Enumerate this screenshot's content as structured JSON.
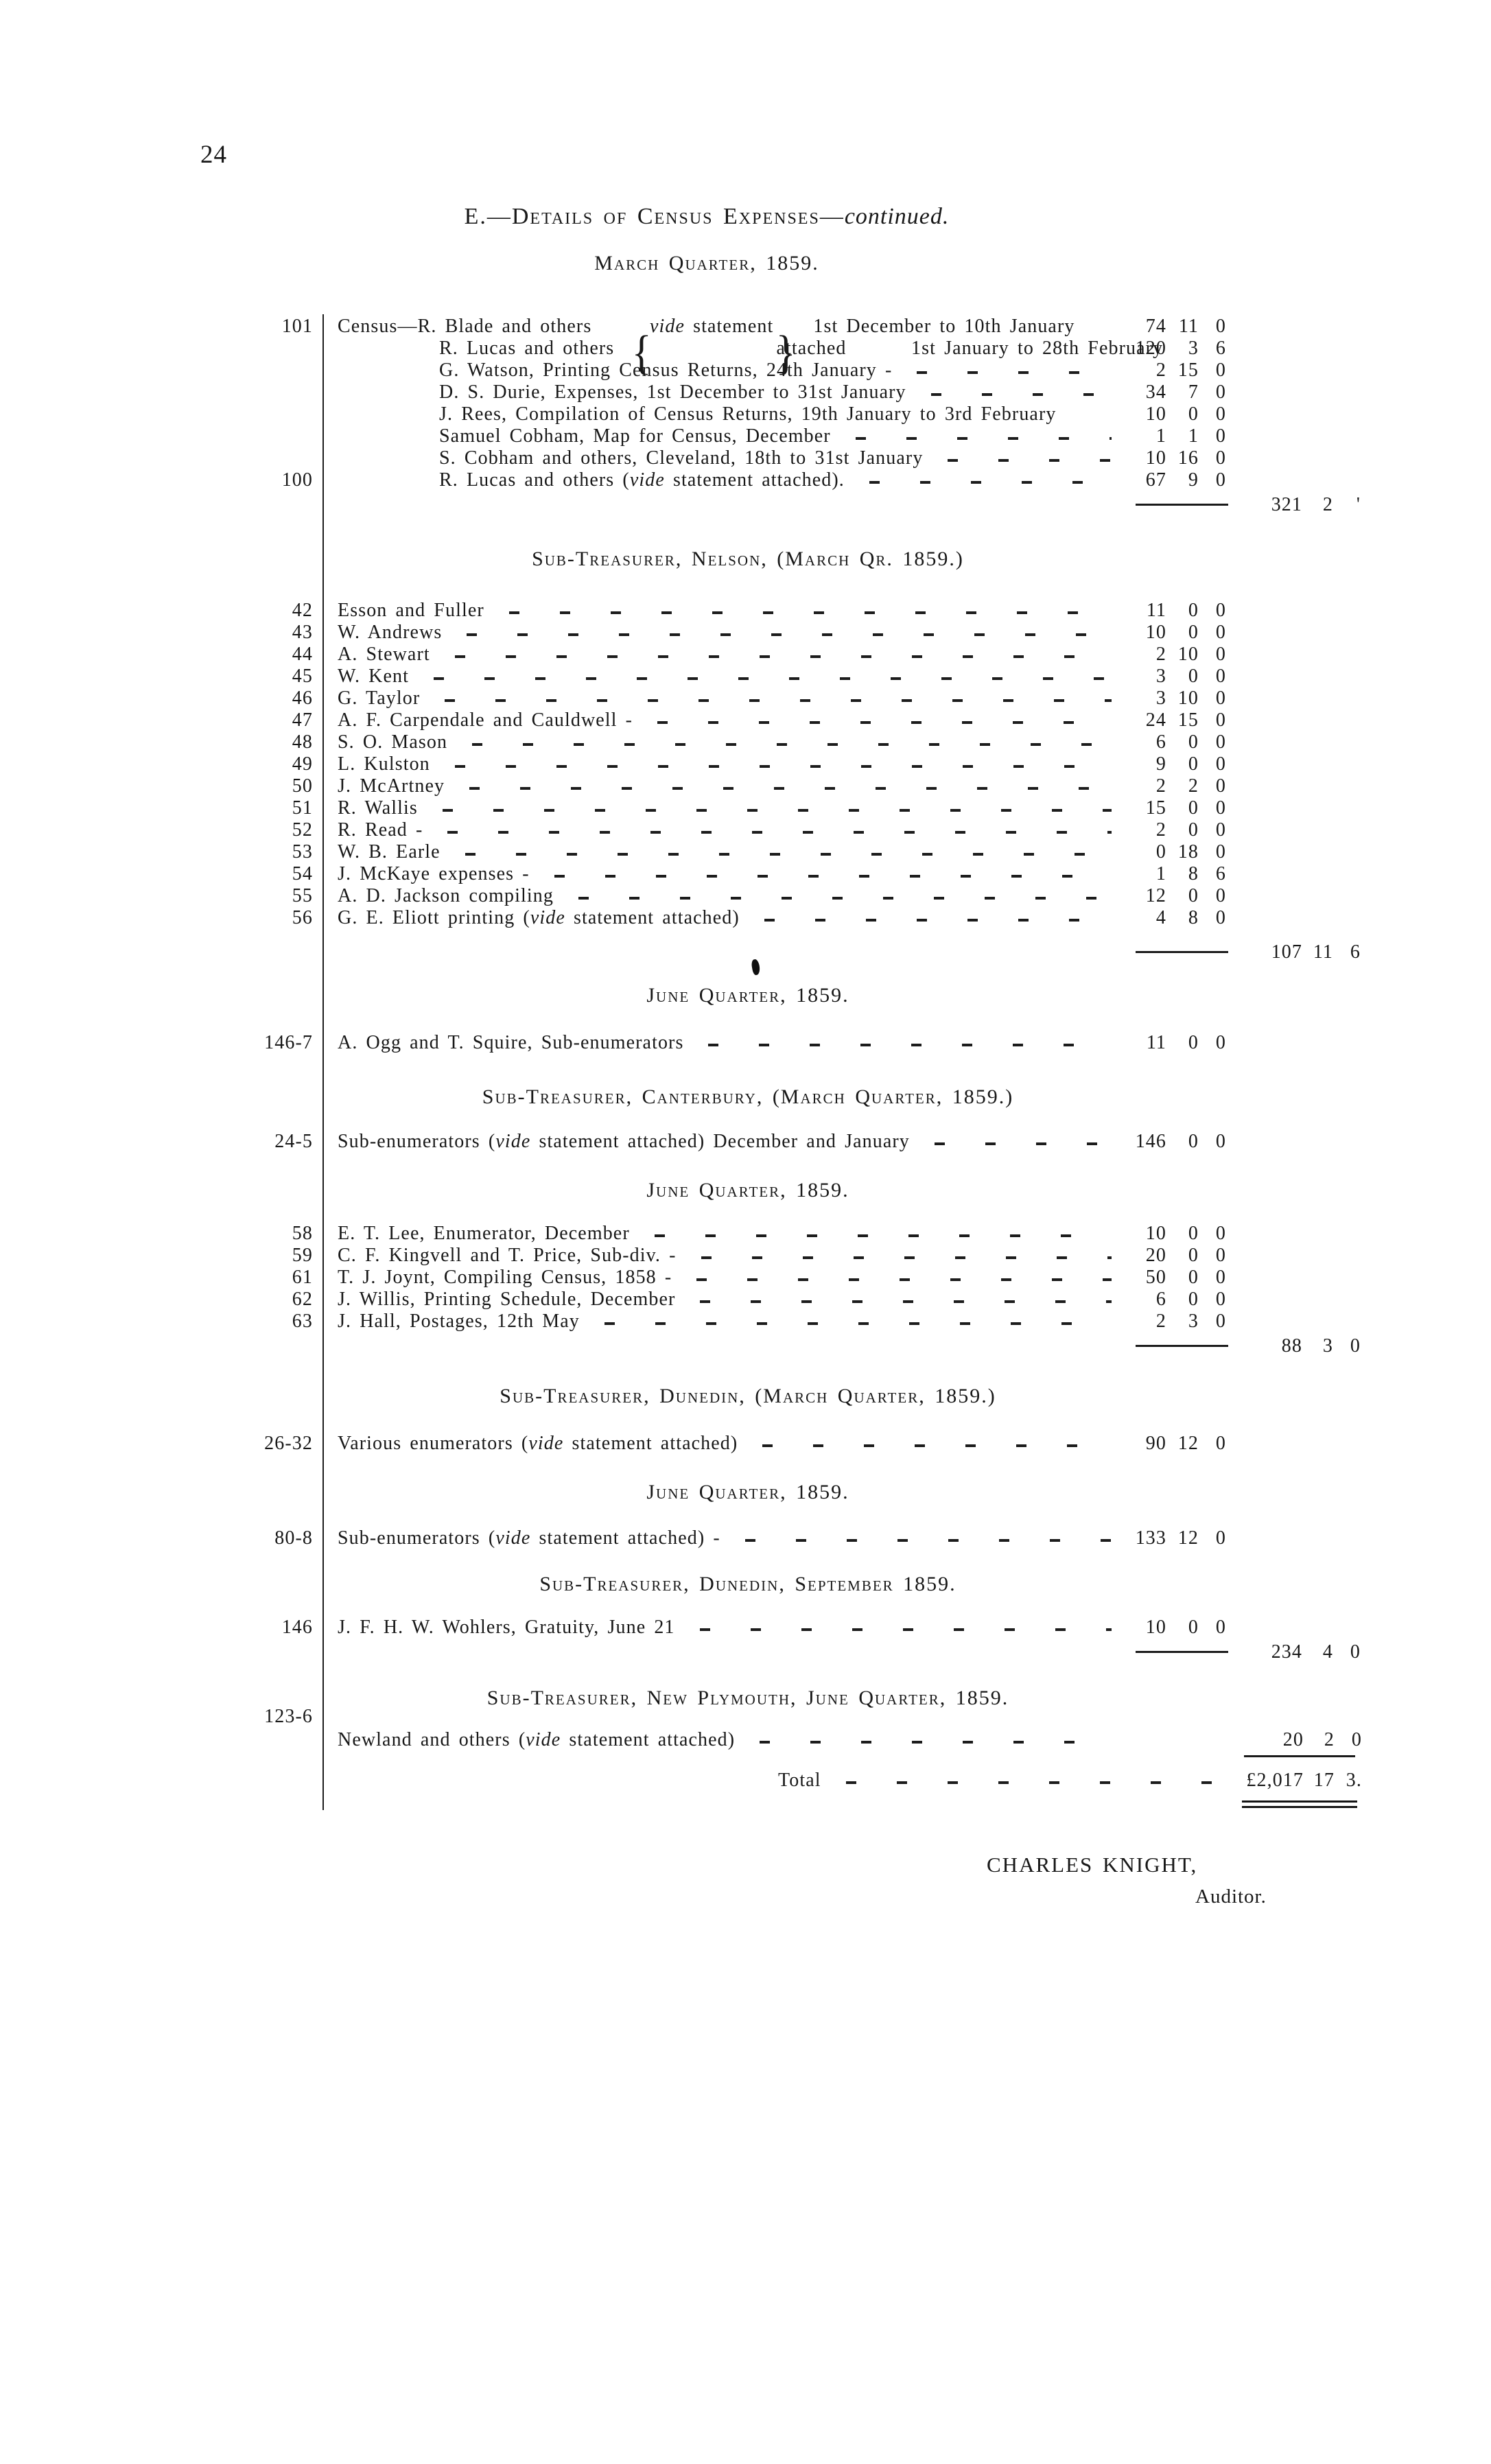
{
  "page": {
    "number": "24",
    "title_caps": "E.—Details of Census Expenses—",
    "title_continued": "continued.",
    "subtitle": "March Quarter, 1859."
  },
  "signature": {
    "name": "CHARLES KNIGHT,",
    "role": "Auditor."
  },
  "table": {
    "currency_columns": [
      "pounds",
      "shillings",
      "pence"
    ],
    "blocks": [
      {
        "cls": "blk-census",
        "rows": [
          {
            "ref": "101",
            "desc": "Census—R. Blade and others",
            "mid": "vide statement",
            "tail": "1st December to 10th January",
            "l": "74",
            "s": "11",
            "d": "0",
            "brace": true
          },
          {
            "desc": "R. Lucas and others",
            "mid": "attached",
            "tail": "1st January to 28th February",
            "l": "120",
            "s": "3",
            "d": "6",
            "brace": true,
            "ind2": true
          },
          {
            "desc": "G. Watson, Printing Census Returns, 24th January -",
            "l": "2",
            "s": "15",
            "d": "0",
            "leader": true,
            "ind": true
          },
          {
            "desc": "D. S. Durie, Expenses, 1st December to 31st January",
            "l": "34",
            "s": "7",
            "d": "0",
            "leader": true,
            "ind": true
          },
          {
            "desc": "J. Rees, Compilation of Census Returns, 19th January to 3rd February",
            "l": "10",
            "s": "0",
            "d": "0",
            "ind": true
          },
          {
            "desc": "Samuel Cobham, Map for Census, December",
            "l": "1",
            "s": "1",
            "d": "0",
            "leader": true,
            "ind": true
          },
          {
            "desc": "S. Cobham and others, Cleveland, 18th to 31st January",
            "l": "10",
            "s": "16",
            "d": "0",
            "leader": true,
            "ind": true
          },
          {
            "ref": "100",
            "desc": "R. Lucas and others (vide statement attached).",
            "l": "67",
            "s": "9",
            "d": "0",
            "leader": true,
            "ind": true
          }
        ],
        "subtotal": {
          "l": "321",
          "s": "2",
          "d": "'"
        }
      },
      {
        "cls": "blk-nelson",
        "heading": "Sub-Treasurer, Nelson, (March Qr. 1859.)",
        "rows": [
          {
            "ref": "42",
            "desc": "Esson and Fuller",
            "l": "11",
            "s": "0",
            "d": "0",
            "leader": true
          },
          {
            "ref": "43",
            "desc": "W. Andrews",
            "l": "10",
            "s": "0",
            "d": "0",
            "leader": true
          },
          {
            "ref": "44",
            "desc": "A. Stewart",
            "l": "2",
            "s": "10",
            "d": "0",
            "leader": true
          },
          {
            "ref": "45",
            "desc": "W. Kent",
            "l": "3",
            "s": "0",
            "d": "0",
            "leader": true
          },
          {
            "ref": "46",
            "desc": "G. Taylor",
            "l": "3",
            "s": "10",
            "d": "0",
            "leader": true
          },
          {
            "ref": "47",
            "desc": "A. F. Carpendale and Cauldwell -",
            "l": "24",
            "s": "15",
            "d": "0",
            "leader": true
          },
          {
            "ref": "48",
            "desc": "S. O. Mason",
            "l": "6",
            "s": "0",
            "d": "0",
            "leader": true
          },
          {
            "ref": "49",
            "desc": "L. Kulston",
            "l": "9",
            "s": "0",
            "d": "0",
            "leader": true
          },
          {
            "ref": "50",
            "desc": "J. McArtney",
            "l": "2",
            "s": "2",
            "d": "0",
            "leader": true
          },
          {
            "ref": "51",
            "desc": "R. Wallis",
            "l": "15",
            "s": "0",
            "d": "0",
            "leader": true
          },
          {
            "ref": "52",
            "desc": "R. Read -",
            "l": "2",
            "s": "0",
            "d": "0",
            "leader": true
          },
          {
            "ref": "53",
            "desc": "W. B. Earle",
            "l": "0",
            "s": "18",
            "d": "0",
            "leader": true
          },
          {
            "ref": "54",
            "desc": "J. McKaye expenses -",
            "l": "1",
            "s": "8",
            "d": "6",
            "leader": true
          },
          {
            "ref": "55",
            "desc": "A. D. Jackson compiling",
            "l": "12",
            "s": "0",
            "d": "0",
            "leader": true
          },
          {
            "ref": "56",
            "desc": "G. E. Eliott printing (vide statement attached)",
            "l": "4",
            "s": "8",
            "d": "0",
            "leader": true
          }
        ],
        "subtotal": {
          "l": "107",
          "s": "11",
          "d": "6"
        }
      },
      {
        "cls": "blk-june1",
        "heading": "June Quarter, 1859.",
        "rows": [
          {
            "ref": "146-7",
            "desc": "A. Ogg and T. Squire, Sub-enumerators",
            "l": "11",
            "s": "0",
            "d": "0",
            "leader": true
          }
        ]
      },
      {
        "cls": "blk-canterbury",
        "heading": "Sub-Treasurer, Canterbury, (March Quarter, 1859.)",
        "rows": [
          {
            "ref": "24-5",
            "desc": "Sub-enumerators (vide statement attached) December and January",
            "l": "146",
            "s": "0",
            "d": "0",
            "leader": true
          }
        ]
      },
      {
        "cls": "blk-june2",
        "heading": "June Quarter, 1859.",
        "rows": [
          {
            "ref": "58",
            "desc": "E. T. Lee, Enumerator, December",
            "l": "10",
            "s": "0",
            "d": "0",
            "leader": true
          },
          {
            "ref": "59",
            "desc": "C. F. Kingvell and T. Price, Sub-div. -",
            "l": "20",
            "s": "0",
            "d": "0",
            "leader": true
          },
          {
            "ref": "61",
            "desc": "T. J. Joynt, Compiling Census, 1858 -",
            "l": "50",
            "s": "0",
            "d": "0",
            "leader": true
          },
          {
            "ref": "62",
            "desc": "J. Willis, Printing Schedule, December",
            "l": "6",
            "s": "0",
            "d": "0",
            "leader": true
          },
          {
            "ref": "63",
            "desc": "J. Hall, Postages, 12th May",
            "l": "2",
            "s": "3",
            "d": "0",
            "leader": true
          }
        ],
        "subtotal": {
          "l": "88",
          "s": "3",
          "d": "0"
        }
      },
      {
        "cls": "blk-dunedin-mar",
        "heading": "Sub-Treasurer, Dunedin, (March Quarter, 1859.)",
        "rows": [
          {
            "ref": "26-32",
            "desc": "Various enumerators (vide statement attached)",
            "l": "90",
            "s": "12",
            "d": "0",
            "leader": true
          }
        ]
      },
      {
        "cls": "blk-june3",
        "heading": "June Quarter, 1859.",
        "rows": [
          {
            "ref": "80-8",
            "desc": "Sub-enumerators (vide statement attached) -",
            "l": "133",
            "s": "12",
            "d": "0",
            "leader": true
          }
        ]
      },
      {
        "cls": "blk-dunedin-sep",
        "heading": "Sub-Treasurer, Dunedin, September 1859.",
        "rows": [
          {
            "ref": "146",
            "desc": "J. F. H. W. Wohlers, Gratuity, June 21",
            "l": "10",
            "s": "0",
            "d": "0",
            "leader": true
          }
        ],
        "subtotal": {
          "l": "234",
          "s": "4",
          "d": "0"
        }
      },
      {
        "cls": "blk-plymouth",
        "heading": "Sub-Treasurer, New Plymouth, June Quarter, 1859.",
        "rows": [
          {
            "ref": "123-6",
            "ref_raised": true,
            "desc": "Newland and others (vide statement attached)",
            "ol": "20",
            "os": "2",
            "od": "0",
            "leader": true
          }
        ],
        "outer_rule": true
      },
      {
        "cls": "blk-total",
        "total": {
          "label": "Total",
          "l": "£2,017",
          "s": "17",
          "d": "3."
        }
      }
    ]
  }
}
